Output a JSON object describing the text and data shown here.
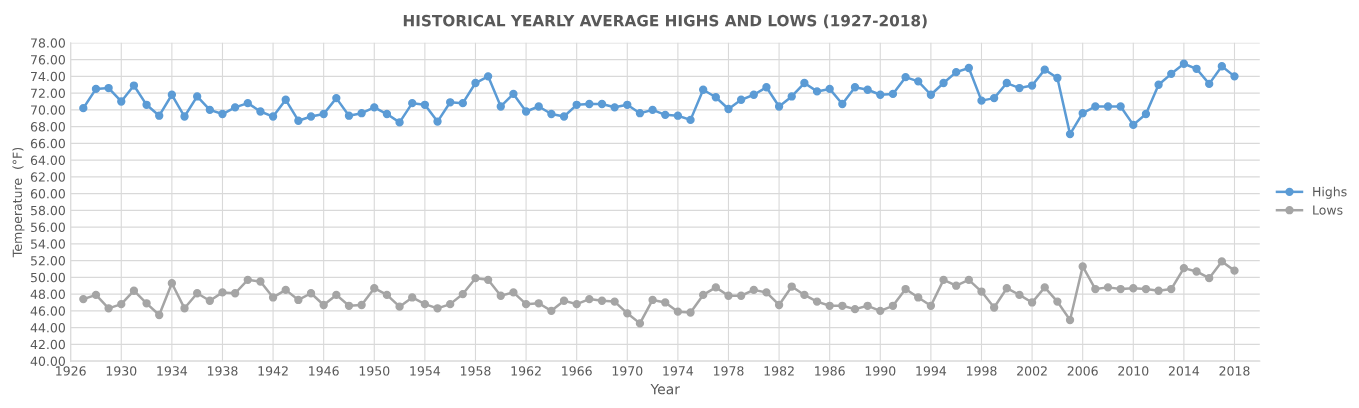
{
  "chart_data": {
    "type": "line",
    "title": "HISTORICAL YEARLY AVERAGE HIGHS AND LOWS (1927-2018)",
    "xlabel": "Year",
    "ylabel": "Temperature  (°F)",
    "x": [
      1927,
      1928,
      1929,
      1930,
      1931,
      1932,
      1933,
      1934,
      1935,
      1936,
      1937,
      1938,
      1939,
      1940,
      1941,
      1942,
      1943,
      1944,
      1945,
      1946,
      1947,
      1948,
      1949,
      1950,
      1951,
      1952,
      1953,
      1954,
      1955,
      1956,
      1957,
      1958,
      1959,
      1960,
      1961,
      1962,
      1963,
      1964,
      1965,
      1966,
      1967,
      1968,
      1969,
      1970,
      1971,
      1972,
      1973,
      1974,
      1975,
      1976,
      1977,
      1978,
      1979,
      1980,
      1981,
      1982,
      1983,
      1984,
      1985,
      1986,
      1987,
      1988,
      1989,
      1990,
      1991,
      1992,
      1993,
      1994,
      1995,
      1996,
      1997,
      1998,
      1999,
      2000,
      2001,
      2002,
      2003,
      2004,
      2005,
      2006,
      2007,
      2008,
      2009,
      2010,
      2011,
      2012,
      2013,
      2014,
      2015,
      2016,
      2017,
      2018
    ],
    "series": [
      {
        "name": "Highs",
        "color": "#5b9bd5",
        "values": [
          70.2,
          72.5,
          72.6,
          71.0,
          72.9,
          70.6,
          69.3,
          71.8,
          69.2,
          71.6,
          70.0,
          69.5,
          70.3,
          70.8,
          69.8,
          69.2,
          71.2,
          68.7,
          69.2,
          69.5,
          71.4,
          69.3,
          69.6,
          70.3,
          69.5,
          68.5,
          70.8,
          70.6,
          68.6,
          70.9,
          70.8,
          73.2,
          74.0,
          70.4,
          71.9,
          69.8,
          70.4,
          69.5,
          69.2,
          70.6,
          70.7,
          70.7,
          70.3,
          70.6,
          69.6,
          70.0,
          69.4,
          69.3,
          68.8,
          72.4,
          71.5,
          70.1,
          71.2,
          71.8,
          72.7,
          70.4,
          71.6,
          73.2,
          72.2,
          72.5,
          70.7,
          72.7,
          72.4,
          71.8,
          71.9,
          73.9,
          73.4,
          71.8,
          73.2,
          74.5,
          75.0,
          71.1,
          71.4,
          73.2,
          72.6,
          72.9,
          74.8,
          73.8,
          67.1,
          69.6,
          70.4,
          70.4,
          70.4,
          68.2,
          69.5,
          73.0,
          74.3,
          75.5,
          74.9,
          73.1,
          75.2,
          74.0
        ]
      },
      {
        "name": "Lows",
        "color": "#a5a5a5",
        "values": [
          47.4,
          47.9,
          46.3,
          46.8,
          48.4,
          46.9,
          45.5,
          49.3,
          46.3,
          48.1,
          47.2,
          48.2,
          48.1,
          49.7,
          49.5,
          47.6,
          48.5,
          47.3,
          48.1,
          46.7,
          47.9,
          46.6,
          46.7,
          48.7,
          47.9,
          46.5,
          47.6,
          46.8,
          46.3,
          46.8,
          48.0,
          49.9,
          49.7,
          47.8,
          48.2,
          46.8,
          46.9,
          46.0,
          47.2,
          46.8,
          47.4,
          47.2,
          47.1,
          45.7,
          44.5,
          47.3,
          47.0,
          45.9,
          45.8,
          47.9,
          48.8,
          47.8,
          47.8,
          48.5,
          48.2,
          46.7,
          48.9,
          47.9,
          47.1,
          46.6,
          46.6,
          46.2,
          46.6,
          46.0,
          46.6,
          48.6,
          47.6,
          46.6,
          49.7,
          49.0,
          49.7,
          48.3,
          46.4,
          48.7,
          47.9,
          47.0,
          48.8,
          47.1,
          44.9,
          51.3,
          48.6,
          48.8,
          48.6,
          48.7,
          48.6,
          48.4,
          48.6,
          51.1,
          50.7,
          49.9,
          51.9,
          50.8
        ]
      }
    ],
    "xlim": [
      1926,
      2020
    ],
    "xticks": [
      1926,
      1930,
      1934,
      1938,
      1942,
      1946,
      1950,
      1954,
      1958,
      1962,
      1966,
      1970,
      1974,
      1978,
      1982,
      1986,
      1990,
      1994,
      1998,
      2002,
      2006,
      2010,
      2014,
      2018
    ],
    "ylim": [
      40,
      78
    ],
    "yticks": [
      {
        "value": 40,
        "label": "40.00"
      },
      {
        "value": 42,
        "label": "42.00"
      },
      {
        "value": 44,
        "label": "44.00"
      },
      {
        "value": 46,
        "label": "46.00"
      },
      {
        "value": 48,
        "label": "48.00"
      },
      {
        "value": 50,
        "label": "50.00"
      },
      {
        "value": 52,
        "label": "52.00"
      },
      {
        "value": 54,
        "label": "54.00"
      },
      {
        "value": 56,
        "label": "56.00"
      },
      {
        "value": 58,
        "label": "58.00"
      },
      {
        "value": 60,
        "label": "60.00"
      },
      {
        "value": 62,
        "label": "62.00"
      },
      {
        "value": 64,
        "label": "64.00"
      },
      {
        "value": 66,
        "label": "66.00"
      },
      {
        "value": 68,
        "label": "68.00"
      },
      {
        "value": 70,
        "label": "70.00"
      },
      {
        "value": 72,
        "label": "72.00"
      },
      {
        "value": 74,
        "label": "74.00"
      },
      {
        "value": 76,
        "label": "76.00"
      },
      {
        "value": 78,
        "label": "78.00"
      }
    ],
    "grid": true,
    "legend": "right",
    "marker": "circle",
    "line_style": "solid"
  }
}
